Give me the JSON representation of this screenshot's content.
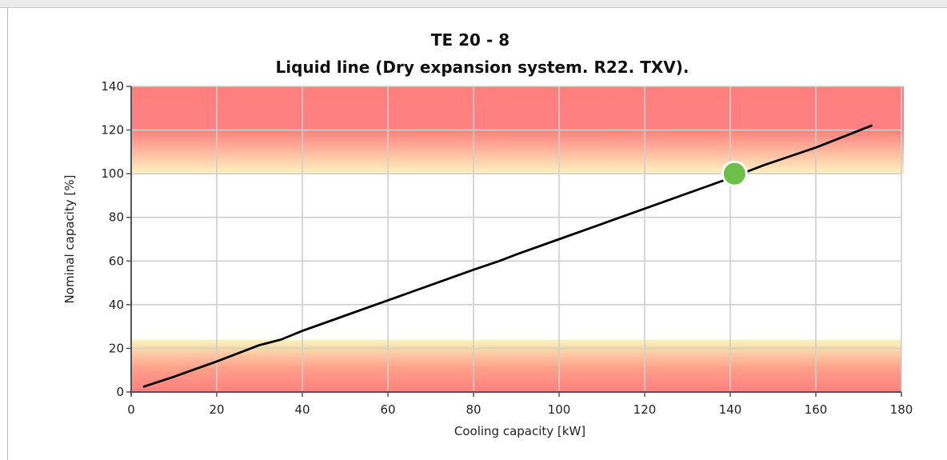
{
  "chart_data": {
    "type": "line",
    "title": "TE 20 - 8",
    "subtitle": "Liquid line (Dry expansion system. R22. TXV).",
    "xlabel": "Cooling capacity [kW]",
    "ylabel": "Nominal capacity [%]",
    "xlim": [
      0,
      180
    ],
    "ylim": [
      0,
      140
    ],
    "x_ticks": [
      "0",
      "20",
      "40",
      "60",
      "80",
      "100",
      "120",
      "140",
      "160",
      "180"
    ],
    "y_ticks": [
      "0",
      "20",
      "40",
      "60",
      "80",
      "100",
      "120",
      "140"
    ],
    "grid": true,
    "legend": "none",
    "series": [
      {
        "x": [
          3,
          10,
          20,
          30,
          35,
          40,
          50,
          60,
          70,
          80,
          86,
          90,
          100,
          110,
          120,
          130,
          140,
          148,
          160,
          173
        ],
        "y": [
          2.5,
          7,
          14,
          21.5,
          24,
          28,
          35,
          42,
          49,
          56,
          60,
          63,
          70,
          77,
          84,
          91,
          98,
          104,
          112,
          122
        ],
        "color": "#000000"
      }
    ],
    "marker": {
      "x": 141,
      "y": 100,
      "color": "#6cc04a"
    },
    "zones": [
      {
        "from": 100,
        "to": 140,
        "color": "#ff7f7f",
        "fade": "#fdf3bf"
      },
      {
        "from": 0,
        "to": 24,
        "color": "#ff7f7f",
        "fade": "#fdf3bf"
      }
    ]
  }
}
